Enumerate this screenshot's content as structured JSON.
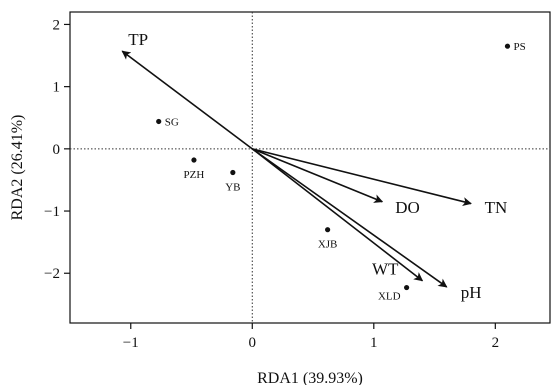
{
  "chart_data": {
    "type": "scatter",
    "subtype": "rda-biplot",
    "xlabel": "RDA1 (39.93%)",
    "ylabel": "RDA2 (26.41%)",
    "xlim": [
      -1.5,
      2.45
    ],
    "ylim": [
      -2.8,
      2.2
    ],
    "xticks": [
      -1,
      0,
      1,
      2
    ],
    "yticks": [
      -2,
      -1,
      0,
      1,
      2
    ],
    "grid": false,
    "reference_lines": {
      "x": 0,
      "y": 0,
      "style": "dotted"
    },
    "colors": {
      "ink": "#111111",
      "reference": "#333333"
    },
    "arrows": [
      {
        "label": "TP",
        "x": -1.07,
        "y": 1.57
      },
      {
        "label": "TN",
        "x": 1.8,
        "y": -0.88
      },
      {
        "label": "DO",
        "x": 1.07,
        "y": -0.85
      },
      {
        "label": "WT",
        "x": 1.4,
        "y": -2.12
      },
      {
        "label": "pH",
        "x": 1.6,
        "y": -2.22
      }
    ],
    "sites": [
      {
        "label": "PS",
        "x": 2.1,
        "y": 1.65
      },
      {
        "label": "SG",
        "x": -0.77,
        "y": 0.44
      },
      {
        "label": "PZH",
        "x": -0.48,
        "y": -0.18
      },
      {
        "label": "YB",
        "x": -0.16,
        "y": -0.38
      },
      {
        "label": "XJB",
        "x": 0.62,
        "y": -1.3
      },
      {
        "label": "XLD",
        "x": 1.27,
        "y": -2.23
      }
    ]
  }
}
